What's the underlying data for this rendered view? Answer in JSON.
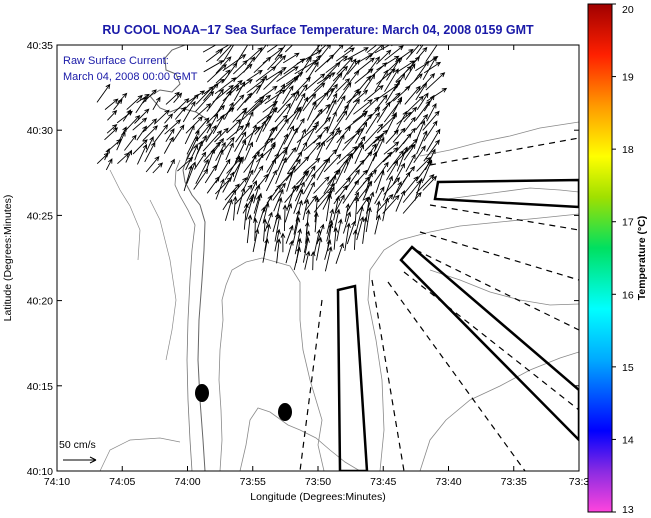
{
  "chart_data": {
    "type": "vector-field-map",
    "title": "RU COOL  NOAA−17  Sea Surface Temperature:  March 04, 2008 0159 GMT",
    "annotation_line1": "Raw Surface Current:",
    "annotation_line2": "March 04, 2008 00:00 GMT",
    "xlabel": "Longitude (Degrees:Minutes)",
    "ylabel": "Latitude (Degrees:Minutes)",
    "xlim_min": [
      -74.1667,
      -73.5
    ],
    "ylim_deg": [
      40.1667,
      40.5833
    ],
    "x_ticks": [
      {
        "label": "74:10",
        "min": 0
      },
      {
        "label": "74:05",
        "min": 5
      },
      {
        "label": "74:00",
        "min": 10
      },
      {
        "label": "73:55",
        "min": 15
      },
      {
        "label": "73:50",
        "min": 20
      },
      {
        "label": "73:45",
        "min": 25
      },
      {
        "label": "73:40",
        "min": 30
      },
      {
        "label": "73:35",
        "min": 35
      },
      {
        "label": "73:3",
        "min": 40
      }
    ],
    "y_ticks": [
      {
        "label": "40:35",
        "min": 35
      },
      {
        "label": "40:30",
        "min": 30
      },
      {
        "label": "40:25",
        "min": 25
      },
      {
        "label": "40:20",
        "min": 20
      },
      {
        "label": "40:15",
        "min": 15
      },
      {
        "label": "40:10",
        "min": 10
      }
    ],
    "scale_label": "50 cm/s",
    "colorbar": {
      "label": "Temperature (°C)",
      "range": [
        13,
        20
      ],
      "ticks": [
        "13",
        "14",
        "15",
        "16",
        "17",
        "18",
        "19",
        "20"
      ]
    },
    "current_field": {
      "region": "NY Bight apex, approx 74:05W–73:41W, 40:21N–40:34N",
      "predominant_direction": "toward northeast",
      "speed_cm_s_range": [
        10,
        45
      ]
    },
    "colors": {
      "title": "#1a1aa8",
      "contour": "#8a8a8a",
      "arrow": "#000000",
      "frame": "#000000"
    }
  }
}
